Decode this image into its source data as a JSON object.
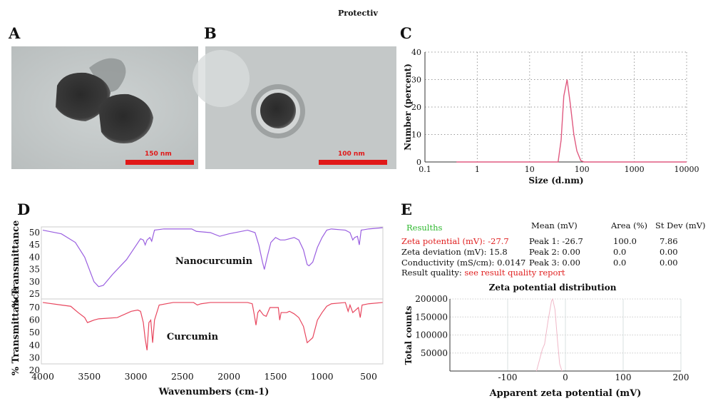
{
  "header": {
    "text": "Protectiv"
  },
  "panels": {
    "a": {
      "label": "A",
      "scale_bar": "150 nm"
    },
    "b": {
      "label": "B",
      "scale_bar": "100 nm"
    },
    "c": {
      "label": "C"
    },
    "d": {
      "label": "D"
    },
    "e": {
      "label": "E"
    }
  },
  "colors": {
    "ftir_nano": "#9a5fe0",
    "ftir_curcumin": "#e8465e",
    "dls": "#e05a80",
    "zeta": "#f0b8c8",
    "scale_bar": "#e01818"
  },
  "results": {
    "title": "Resulths",
    "col_mean": "Mean (mV)",
    "col_area": "Area (%)",
    "col_stdev": "St Dev (mV)",
    "rows": [
      {
        "label": "Zeta potential (mV):  -27.7",
        "peak": "Peak 1: -26.7",
        "area": "100.0",
        "stdev": "7.86"
      },
      {
        "label": "Zeta deviation (mV): 15.8",
        "peak": "Peak 2: 0.00",
        "area": "0.0",
        "stdev": "0.00"
      },
      {
        "label": "Conductivity (mS/cm): 0.0147",
        "peak": "Peak 3: 0.00",
        "area": "0.0",
        "stdev": "0.00"
      }
    ],
    "quality_label": "Result quality:",
    "quality_link": "see result quality report"
  },
  "chart_data": [
    {
      "id": "C",
      "type": "line",
      "xscale": "log",
      "xlabel": "Size (d.nm)",
      "ylabel": "Number (percent)",
      "xlim": [
        0.1,
        10000
      ],
      "ylim": [
        0,
        40
      ],
      "xticks": [
        "0.1",
        "1",
        "10",
        "100",
        "1000",
        "10000"
      ],
      "yticks": [
        "0",
        "10",
        "20",
        "30",
        "40"
      ],
      "grid": true,
      "series": [
        {
          "x": [
            0.4,
            35,
            40,
            45,
            52,
            60,
            70,
            80,
            95,
            110,
            10000
          ],
          "y": [
            0,
            0,
            8,
            24,
            30,
            21,
            10,
            4,
            0.5,
            0,
            0
          ]
        }
      ]
    },
    {
      "id": "D",
      "type": "line",
      "xlabel": "Wavenumbers (cm-1)",
      "ylabel": "% Transmittance",
      "xlim": [
        4000,
        350
      ],
      "xticks": [
        "4000",
        "3500",
        "3000",
        "2500",
        "2000",
        "1500",
        "1000",
        "500"
      ],
      "subplots": [
        {
          "name": "Nanocurcumin",
          "ylim": [
            25,
            50
          ],
          "yticks": [
            "50",
            "45",
            "40",
            "35",
            "30",
            "25"
          ],
          "x": [
            4000,
            3800,
            3650,
            3550,
            3450,
            3400,
            3350,
            3250,
            3100,
            2950,
            2920,
            2900,
            2880,
            2850,
            2830,
            2800,
            2700,
            2400,
            2350,
            2200,
            2100,
            2000,
            1800,
            1720,
            1680,
            1640,
            1620,
            1590,
            1550,
            1500,
            1450,
            1400,
            1300,
            1250,
            1200,
            1160,
            1140,
            1100,
            1050,
            1000,
            950,
            900,
            750,
            700,
            670,
            650,
            620,
            600,
            580,
            500,
            350
          ],
          "y": [
            51,
            49.5,
            46,
            40,
            30,
            28,
            28.5,
            33,
            39,
            47.5,
            47,
            45,
            47,
            48,
            46.5,
            51,
            51.5,
            51.5,
            50.5,
            50,
            48.5,
            49.5,
            51,
            50,
            45,
            38,
            35,
            40,
            46,
            48,
            47,
            47,
            48,
            47,
            43,
            37,
            36.5,
            38,
            44,
            48,
            51,
            51.5,
            51,
            50,
            47,
            48,
            48.5,
            45,
            51,
            51.5,
            52
          ]
        },
        {
          "name": "Curcumin",
          "ylim": [
            20,
            70
          ],
          "yticks": [
            "70",
            "60",
            "50",
            "40",
            "30",
            "20"
          ],
          "x": [
            4000,
            3800,
            3700,
            3620,
            3550,
            3520,
            3450,
            3400,
            3200,
            3050,
            2980,
            2950,
            2920,
            2900,
            2880,
            2860,
            2840,
            2820,
            2800,
            2750,
            2600,
            2380,
            2340,
            2300,
            2200,
            1800,
            1750,
            1730,
            1710,
            1690,
            1670,
            1630,
            1600,
            1560,
            1500,
            1470,
            1455,
            1440,
            1380,
            1350,
            1300,
            1250,
            1200,
            1160,
            1130,
            1100,
            1050,
            1000,
            950,
            900,
            750,
            720,
            700,
            670,
            640,
            610,
            590,
            570,
            500,
            350
          ],
          "y": [
            74,
            72,
            71,
            66,
            62,
            58,
            60,
            61,
            62,
            67,
            68,
            67,
            58,
            45,
            36,
            58,
            60,
            42,
            60,
            72,
            74,
            74,
            72,
            73,
            74,
            74,
            73,
            65,
            56,
            66,
            68,
            64,
            63,
            70,
            70,
            70,
            60,
            66,
            66,
            67,
            65,
            62,
            55,
            42,
            44,
            46,
            60,
            66,
            71,
            73,
            74,
            67,
            72,
            66,
            68,
            70,
            62,
            72,
            73,
            74
          ]
        }
      ]
    },
    {
      "id": "E",
      "type": "line",
      "title": "Zeta potential distribution",
      "xlabel": "Apparent zeta potential (mV)",
      "ylabel": "Total counts",
      "xlim": [
        -200,
        200
      ],
      "ylim": [
        0,
        200000
      ],
      "xticks": [
        "-100",
        "0",
        "100",
        "200"
      ],
      "yticks": [
        "50000",
        "100000",
        "150000",
        "200000"
      ],
      "grid": true,
      "series": [
        {
          "x": [
            -50,
            -45,
            -40,
            -36,
            -30,
            -24,
            -22,
            -18,
            -14,
            -10,
            -6
          ],
          "y": [
            0,
            30000,
            60000,
            75000,
            140000,
            195000,
            200000,
            170000,
            90000,
            20000,
            0
          ]
        }
      ]
    }
  ]
}
